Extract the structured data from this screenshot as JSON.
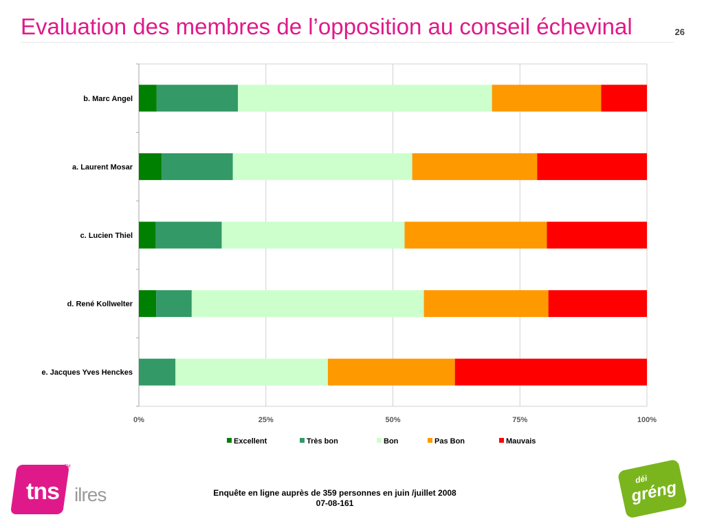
{
  "slide": {
    "title": "Evaluation des membres de l’opposition au conseil échevinal",
    "page_number": "26",
    "footer_line1": "Enquête en ligne auprès de 359 personnes en juin /juillet 2008",
    "footer_line2": "07-08-161"
  },
  "logos": {
    "tns_text": "tns",
    "tns_tm": "TM",
    "ilres_text": "ilres",
    "greng_small": "déi",
    "greng_big": "gréng"
  },
  "chart_data": {
    "type": "bar",
    "orientation": "horizontal",
    "stacked": "percent",
    "categories": [
      "b. Marc Angel",
      "a. Laurent Mosar",
      "c. Lucien Thiel",
      "d. René Kollwelter",
      "e. Jacques Yves Henckes"
    ],
    "series": [
      {
        "name": "Excellent",
        "color": "#008000",
        "values": [
          3.5,
          4.5,
          3.3,
          3.4,
          0
        ]
      },
      {
        "name": "Très bon",
        "color": "#339966",
        "values": [
          16.0,
          14.0,
          13.0,
          7.0,
          7.2
        ]
      },
      {
        "name": "Bon",
        "color": "#ccffcc",
        "values": [
          50.0,
          35.3,
          36.0,
          45.7,
          30.0
        ]
      },
      {
        "name": "Pas Bon",
        "color": "#ff9900",
        "values": [
          21.5,
          24.6,
          28.0,
          24.5,
          25.0
        ]
      },
      {
        "name": "Mauvais",
        "color": "#ff0000",
        "values": [
          9.0,
          21.6,
          19.7,
          19.4,
          37.8
        ]
      }
    ],
    "xlim": [
      0,
      100
    ],
    "x_ticks": [
      "0%",
      "25%",
      "50%",
      "75%",
      "100%"
    ],
    "grid": true,
    "legend_position": "bottom"
  }
}
